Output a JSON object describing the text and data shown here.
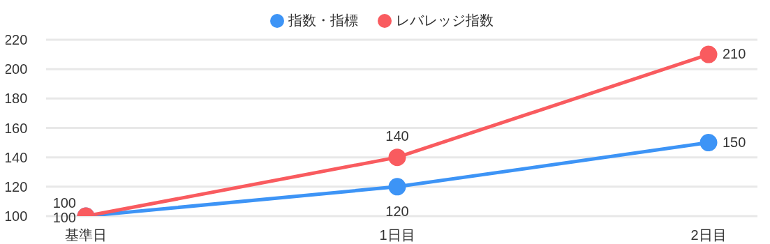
{
  "chart_data": {
    "type": "line",
    "categories": [
      "基準日",
      "1日目",
      "2日目"
    ],
    "series": [
      {
        "name": "指数・指標",
        "color": "#3d94f6",
        "values": [
          100,
          120,
          150
        ]
      },
      {
        "name": "レバレッジ指数",
        "color": "#f95b5f",
        "values": [
          100,
          140,
          210
        ]
      }
    ],
    "ylim": [
      100,
      220
    ],
    "yticks": [
      100,
      120,
      140,
      160,
      180,
      200,
      220
    ],
    "grid": "y",
    "legend": "top",
    "marker": "circle",
    "line_style": "solid",
    "data_labels": true
  }
}
